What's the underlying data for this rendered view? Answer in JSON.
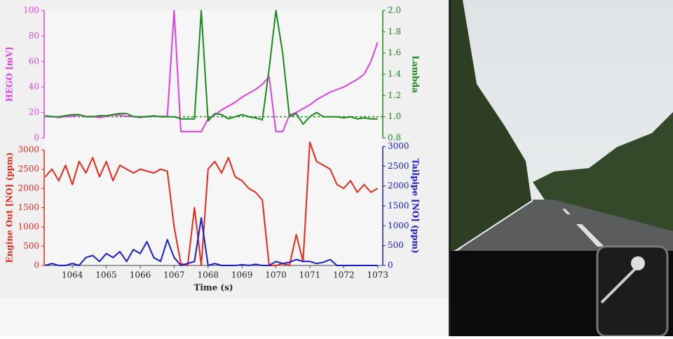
{
  "chart_data": [
    {
      "type": "line",
      "x": [
        1063.2,
        1063.4,
        1063.6,
        1063.8,
        1064.0,
        1064.2,
        1064.4,
        1064.6,
        1064.8,
        1065.0,
        1065.2,
        1065.4,
        1065.6,
        1065.8,
        1066.0,
        1066.2,
        1066.4,
        1066.6,
        1066.8,
        1067.0,
        1067.2,
        1067.4,
        1067.6,
        1067.8,
        1068.0,
        1068.2,
        1068.4,
        1068.6,
        1068.8,
        1069.0,
        1069.2,
        1069.4,
        1069.6,
        1069.8,
        1070.0,
        1070.2,
        1070.4,
        1070.6,
        1070.8,
        1071.0,
        1071.2,
        1071.4,
        1071.6,
        1071.8,
        1072.0,
        1072.2,
        1072.4,
        1072.6,
        1072.8,
        1073.0
      ],
      "xlim": [
        1063.17,
        1073.15
      ],
      "ylabel": "HEGO [mV]",
      "y2label": "Lambda",
      "ylim": [
        0,
        100
      ],
      "yticks": [
        0,
        20,
        40,
        60,
        80,
        100
      ],
      "y2lim": [
        0.8,
        2.0
      ],
      "y2ticks": [
        0.8,
        {
          "value": 1,
          "label": "1.0"
        },
        1.2,
        1.4,
        1.6,
        1.8,
        {
          "value": 2,
          "label": "2.0"
        }
      ],
      "y2_reference": 1,
      "series": [
        {
          "name": "HEGO",
          "color": "#e040e0",
          "axis": "y",
          "values": [
            17,
            17,
            16,
            17,
            17,
            18,
            17,
            17,
            16,
            17,
            18,
            18,
            17,
            17,
            16,
            17,
            17,
            17,
            17,
            100,
            5,
            5,
            5,
            5,
            15,
            18,
            22,
            25,
            28,
            32,
            35,
            38,
            42,
            48,
            5,
            5,
            18,
            20,
            23,
            26,
            30,
            33,
            36,
            38,
            40,
            43,
            46,
            50,
            60,
            75
          ]
        },
        {
          "name": "Lambda",
          "color": "#1a8a1a",
          "axis": "y2",
          "values": [
            1.01,
            1.0,
            1.0,
            1.01,
            1.02,
            1.02,
            1.0,
            1.0,
            1.01,
            1.01,
            1.02,
            1.03,
            1.03,
            1.0,
            1.0,
            1.0,
            1.01,
            1.0,
            1.0,
            1.0,
            0.98,
            0.98,
            0.98,
            2.0,
            0.96,
            1.03,
            1.02,
            0.98,
            1.0,
            1.02,
            1.0,
            0.99,
            0.97,
            1.45,
            2.0,
            1.6,
            1.0,
            1.03,
            0.93,
            1.0,
            1.04,
            1.0,
            1.0,
            1.0,
            0.99,
            1.0,
            0.98,
            0.99,
            0.98,
            0.98
          ]
        }
      ]
    },
    {
      "type": "line",
      "x": [
        1063.2,
        1063.4,
        1063.6,
        1063.8,
        1064.0,
        1064.2,
        1064.4,
        1064.6,
        1064.8,
        1065.0,
        1065.2,
        1065.4,
        1065.6,
        1065.8,
        1066.0,
        1066.2,
        1066.4,
        1066.6,
        1066.8,
        1067.0,
        1067.2,
        1067.4,
        1067.6,
        1067.8,
        1068.0,
        1068.2,
        1068.4,
        1068.6,
        1068.8,
        1069.0,
        1069.2,
        1069.4,
        1069.6,
        1069.8,
        1070.0,
        1070.2,
        1070.4,
        1070.6,
        1070.8,
        1071.0,
        1071.2,
        1071.4,
        1071.6,
        1071.8,
        1072.0,
        1072.2,
        1072.4,
        1072.6,
        1072.8,
        1073.0
      ],
      "xlim": [
        1063.17,
        1073.15
      ],
      "xticks": [
        1064,
        1065,
        1066,
        1067,
        1068,
        1069,
        1070,
        1071,
        1072,
        1073
      ],
      "xlabel": "Time (s)",
      "ylabel": "Engine Out [NO] (ppm)",
      "y2label": "Tailpipe [NO] (ppm)",
      "ylim": [
        0,
        3000
      ],
      "yticks": [
        0,
        500,
        1000,
        1500,
        2000,
        2500,
        3000
      ],
      "y2lim": [
        0,
        3000
      ],
      "y2ticks": [
        0,
        500,
        1000,
        1500,
        2000,
        2500,
        3000
      ],
      "series": [
        {
          "name": "Engine Out [NO]",
          "color": "#e8281a",
          "axis": "y",
          "values": [
            2300,
            2500,
            2200,
            2600,
            2100,
            2700,
            2400,
            2800,
            2300,
            2700,
            2200,
            2600,
            2500,
            2400,
            2500,
            2450,
            2400,
            2500,
            2450,
            1000,
            50,
            0,
            1500,
            0,
            2500,
            2700,
            2400,
            2800,
            2300,
            2200,
            2000,
            1900,
            1700,
            0,
            0,
            50,
            0,
            800,
            100,
            3200,
            2700,
            2600,
            2500,
            2100,
            2000,
            2200,
            1900,
            2100,
            1900,
            2000
          ]
        },
        {
          "name": "Tailpipe [NO]",
          "color": "#1a1ad0",
          "axis": "y2",
          "values": [
            0,
            50,
            0,
            0,
            50,
            0,
            200,
            250,
            100,
            300,
            200,
            350,
            100,
            400,
            300,
            600,
            200,
            100,
            650,
            200,
            0,
            50,
            100,
            1200,
            0,
            50,
            0,
            0,
            0,
            20,
            0,
            30,
            0,
            0,
            100,
            50,
            80,
            150,
            100,
            100,
            50,
            80,
            150,
            0,
            0,
            0,
            0,
            0,
            0,
            0
          ]
        }
      ]
    }
  ]
}
